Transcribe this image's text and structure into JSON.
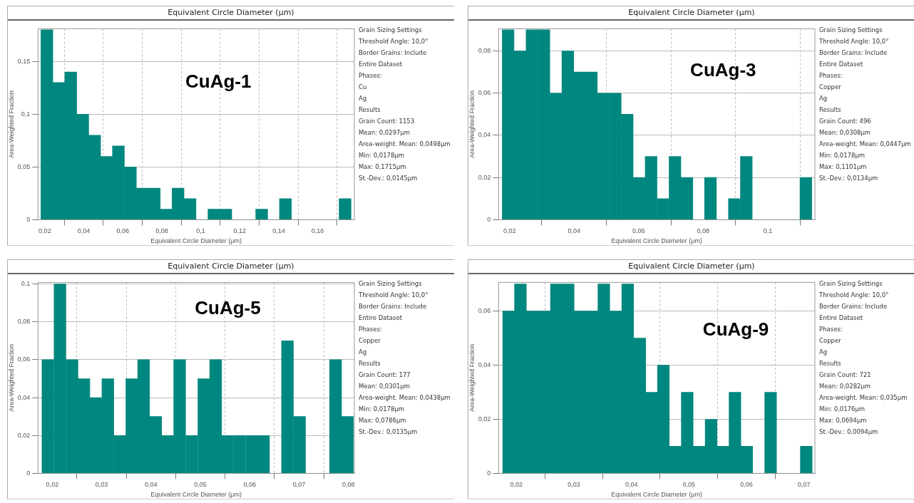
{
  "chart_data": [
    {
      "type": "histogram",
      "title": "Equivalent Circle Diameter (μm)",
      "xlabel": "Equivalent Circle Diameter (μm)",
      "ylabel": "Area-Weighted Fraction",
      "color": "#00877f",
      "bins": [
        0.018,
        0.0241,
        0.0302,
        0.0364,
        0.0425,
        0.0486,
        0.0547,
        0.0608,
        0.067,
        0.0731,
        0.0792,
        0.0853,
        0.0914,
        0.0976,
        0.1037,
        0.1098,
        0.1159,
        0.122,
        0.1282,
        0.1343,
        0.1404,
        0.1465,
        0.1526,
        0.1588,
        0.1649,
        0.171,
        0.1771
      ],
      "values": [
        0.18,
        0.13,
        0.14,
        0.1,
        0.08,
        0.06,
        0.07,
        0.05,
        0.03,
        0.03,
        0.01,
        0.03,
        0.02,
        0,
        0.01,
        0.01,
        0,
        0,
        0.01,
        0,
        0.02,
        0,
        0,
        0,
        0,
        0.02
      ],
      "xlim": [
        0.0165,
        0.1788
      ],
      "xticks": [
        {
          "value": 0.02,
          "label": "0,02"
        },
        {
          "value": 0.04,
          "label": "0,04"
        },
        {
          "value": 0.06,
          "label": "0,06"
        },
        {
          "value": 0.08,
          "label": "0,08"
        },
        {
          "value": 0.1,
          "label": "0,1"
        },
        {
          "value": 0.12,
          "label": "0,12"
        },
        {
          "value": 0.14,
          "label": "0,14"
        },
        {
          "value": 0.16,
          "label": "0,16"
        }
      ],
      "ylim": [
        0,
        0.181
      ],
      "yticks": [
        {
          "value": 0,
          "label": "0"
        },
        {
          "value": 0.05,
          "label": "0,05"
        },
        {
          "value": 0.1,
          "label": "0,1"
        },
        {
          "value": 0.15,
          "label": "0,15"
        }
      ],
      "grid": true,
      "annotations": [
        "CuAg-1",
        "Grain Sizing Settings",
        "Threshold Angle: 10,0°",
        "Border Grains: Include",
        "Entire Dataset",
        "Phases:",
        "Cu",
        "Ag",
        "Results",
        "Grain Count: 1153",
        "Mean: 0,0297μm",
        "Area-weight. Mean: 0,0498μm",
        "Min: 0,0178μm",
        "Max: 0,1715μm",
        "St.-Dev.: 0,0145μm"
      ]
    },
    {
      "type": "histogram",
      "title": "Equivalent Circle Diameter (μm)",
      "xlabel": "Equivalent Circle Diameter (μm)",
      "ylabel": "Area-Weighted Fraction",
      "color": "#00877f",
      "bins": [
        0.0177,
        0.0214,
        0.0251,
        0.0288,
        0.0325,
        0.0362,
        0.0399,
        0.0435,
        0.0472,
        0.0509,
        0.0546,
        0.0583,
        0.062,
        0.0657,
        0.0694,
        0.0731,
        0.0768,
        0.0804,
        0.0841,
        0.0878,
        0.0915,
        0.0952,
        0.0989,
        0.1026,
        0.1063,
        0.11,
        0.1136
      ],
      "values": [
        0.09,
        0.08,
        0.09,
        0.09,
        0.06,
        0.08,
        0.07,
        0.07,
        0.06,
        0.06,
        0.05,
        0.02,
        0.03,
        0.01,
        0.03,
        0.02,
        0,
        0.02,
        0,
        0.01,
        0.03,
        0,
        0,
        0,
        0,
        0.02
      ],
      "xlim": [
        0.0166,
        0.1146
      ],
      "xticks": [
        {
          "value": 0.02,
          "label": "0,02"
        },
        {
          "value": 0.04,
          "label": "0,04"
        },
        {
          "value": 0.06,
          "label": "0,06"
        },
        {
          "value": 0.08,
          "label": "0,08"
        },
        {
          "value": 0.1,
          "label": "0,1"
        }
      ],
      "ylim": [
        0,
        0.0905
      ],
      "yticks": [
        {
          "value": 0,
          "label": "0"
        },
        {
          "value": 0.02,
          "label": "0,02"
        },
        {
          "value": 0.04,
          "label": "0,04"
        },
        {
          "value": 0.06,
          "label": "0,06"
        },
        {
          "value": 0.08,
          "label": "0,08"
        }
      ],
      "grid": true,
      "annotations": [
        "CuAg-3",
        "Grain Sizing Settings",
        "Threshold Angle: 10,0°",
        "Border Grains: Include",
        "Entire Dataset",
        "Phases:",
        "Copper",
        "Ag",
        "Results",
        "Grain Count: 496",
        "Mean: 0,0308μm",
        "Area-weight. Mean: 0,0447μm",
        "Min: 0,0178μm",
        "Max: 0,1101μm",
        "St.-Dev.: 0,0134μm"
      ]
    },
    {
      "type": "histogram",
      "title": "Equivalent Circle Diameter (μm)",
      "xlabel": "Equivalent Circle Diameter (μm)",
      "ylabel": "Area-Weighted Fraction",
      "color": "#00877f",
      "bins": [
        0.0179,
        0.0203,
        0.0228,
        0.0252,
        0.0276,
        0.03,
        0.0325,
        0.0349,
        0.0373,
        0.0397,
        0.0422,
        0.0446,
        0.047,
        0.0495,
        0.0519,
        0.0543,
        0.0567,
        0.0592,
        0.0616,
        0.064,
        0.0664,
        0.0689,
        0.0713,
        0.0737,
        0.0762,
        0.0786,
        0.081
      ],
      "values": [
        0.06,
        0.1,
        0.06,
        0.05,
        0.04,
        0.05,
        0.02,
        0.05,
        0.06,
        0.03,
        0.02,
        0.06,
        0.02,
        0.05,
        0.06,
        0.02,
        0.02,
        0.02,
        0.02,
        0,
        0.07,
        0.03,
        0,
        0,
        0.06,
        0.03
      ],
      "xlim": [
        0.0171,
        0.0812
      ],
      "xticks": [
        {
          "value": 0.02,
          "label": "0,02"
        },
        {
          "value": 0.03,
          "label": "0,03"
        },
        {
          "value": 0.04,
          "label": "0,04"
        },
        {
          "value": 0.05,
          "label": "0,05"
        },
        {
          "value": 0.06,
          "label": "0,06"
        },
        {
          "value": 0.07,
          "label": "0,07"
        },
        {
          "value": 0.08,
          "label": "0,08"
        }
      ],
      "ylim": [
        0,
        0.1008
      ],
      "yticks": [
        {
          "value": 0,
          "label": "0"
        },
        {
          "value": 0.02,
          "label": "0,02"
        },
        {
          "value": 0.04,
          "label": "0,04"
        },
        {
          "value": 0.06,
          "label": "0,06"
        },
        {
          "value": 0.08,
          "label": "0,08"
        },
        {
          "value": 0.1,
          "label": "0,1"
        }
      ],
      "grid": true,
      "annotations": [
        "CuAg-5",
        "Grain Sizing Settings",
        "Threshold Angle: 10,0°",
        "Border Grains: Include",
        "Entire Dataset",
        "Phases:",
        "Copper",
        "Ag",
        "Results",
        "Grain Count: 177",
        "Mean: 0,0301μm",
        "Area-weight. Mean: 0,0438μm",
        "Min: 0,0178μm",
        "Max: 0,0786μm",
        "St.-Dev.: 0,0135μm"
      ]
    },
    {
      "type": "histogram",
      "title": "Equivalent Circle Diameter (μm)",
      "xlabel": "Equivalent Circle Diameter (μm)",
      "ylabel": "Area-Weighted Fraction",
      "color": "#00877f",
      "bins": [
        0.0176,
        0.0197,
        0.0217,
        0.0238,
        0.0259,
        0.028,
        0.03,
        0.0321,
        0.0342,
        0.0362,
        0.0383,
        0.0404,
        0.0425,
        0.0445,
        0.0466,
        0.0487,
        0.0507,
        0.0528,
        0.0549,
        0.057,
        0.059,
        0.0611,
        0.0632,
        0.0652,
        0.0673,
        0.0694,
        0.0714
      ],
      "values": [
        0.06,
        0.07,
        0.06,
        0.06,
        0.07,
        0.07,
        0.06,
        0.06,
        0.07,
        0.06,
        0.07,
        0.05,
        0.03,
        0.04,
        0.01,
        0.03,
        0.01,
        0.02,
        0.01,
        0.03,
        0.01,
        0,
        0.03,
        0,
        0,
        0.01
      ],
      "xlim": [
        0.0169,
        0.0719
      ],
      "xticks": [
        {
          "value": 0.02,
          "label": "0,02"
        },
        {
          "value": 0.03,
          "label": "0,03"
        },
        {
          "value": 0.04,
          "label": "0,04"
        },
        {
          "value": 0.05,
          "label": "0,05"
        },
        {
          "value": 0.06,
          "label": "0,06"
        },
        {
          "value": 0.07,
          "label": "0,07"
        }
      ],
      "ylim": [
        0,
        0.0706
      ],
      "yticks": [
        {
          "value": 0,
          "label": "0"
        },
        {
          "value": 0.02,
          "label": "0,02"
        },
        {
          "value": 0.04,
          "label": "0,04"
        },
        {
          "value": 0.06,
          "label": "0,06"
        }
      ],
      "grid": true,
      "annotations": [
        "CuAg-9",
        "Grain Sizing Settings",
        "Threshold Angle: 10,0°",
        "Border Grains: Include",
        "Entire Dataset",
        "Phases:",
        "Copper",
        "Ag",
        "Results",
        "Grain Count: 721",
        "Mean: 0,0282μm",
        "Area-weight. Mean: 0,035μm",
        "Min: 0,0176μm",
        "Max: 0,0694μm",
        "St.-Dev.: 0,0094μm"
      ]
    }
  ]
}
